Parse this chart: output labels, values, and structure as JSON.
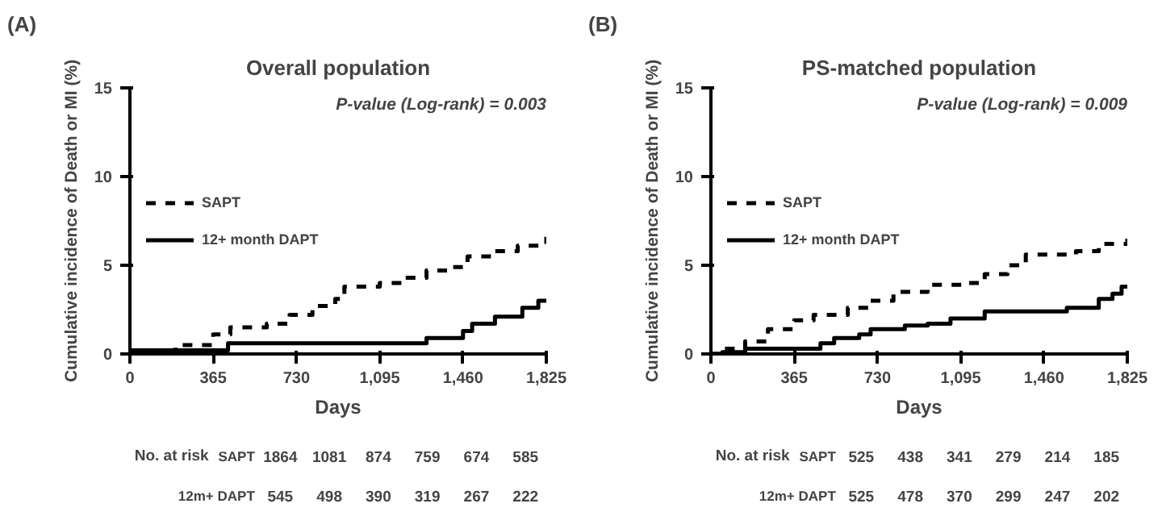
{
  "chart_data": [
    {
      "type": "step",
      "title": "Overall population",
      "xlabel": "Days",
      "ylabel": "Cumulative incidence of Death or MI (%)",
      "xlim": [
        0,
        1825
      ],
      "ylim": [
        0,
        15
      ],
      "xticks": [
        0,
        365,
        730,
        {
          "value": 1095,
          "label": "1,095"
        },
        {
          "value": 1460,
          "label": "1,460"
        },
        {
          "value": 1825,
          "label": "1,825"
        }
      ],
      "yticks": [
        0,
        5,
        10,
        15
      ],
      "grid": false,
      "legend": "left",
      "annotations": [
        "(A)",
        "P-value (Log-rank) = 0.003",
        "No. at risk",
        "SAPT",
        "1864",
        "1081",
        "874",
        "759",
        "674",
        "585",
        "12m+ DAPT",
        "545",
        "498",
        "390",
        "319",
        "267",
        "222"
      ],
      "series": [
        {
          "name": "SAPT",
          "color": "#000000",
          "line_style": "dashed",
          "x": [
            0,
            100,
            200,
            365,
            440,
            600,
            700,
            800,
            900,
            940,
            1095,
            1200,
            1300,
            1400,
            1460,
            1480,
            1600,
            1700,
            1825
          ],
          "values": [
            0.2,
            0.2,
            0.5,
            1.1,
            1.5,
            1.7,
            2.2,
            2.7,
            3.1,
            3.8,
            4.0,
            4.3,
            4.7,
            4.9,
            5.1,
            5.5,
            5.8,
            6.1,
            6.6
          ]
        },
        {
          "name": "12+ month DAPT",
          "color": "#000000",
          "line_style": "solid",
          "x": [
            0,
            430,
            1300,
            1460,
            1500,
            1600,
            1720,
            1790,
            1825
          ],
          "values": [
            0.2,
            0.6,
            0.9,
            1.3,
            1.7,
            2.1,
            2.6,
            3.0,
            3.0
          ]
        }
      ]
    },
    {
      "type": "step",
      "title": "PS-matched population",
      "xlabel": "Days",
      "ylabel": "Cumulative incidence of Death or MI (%)",
      "xlim": [
        0,
        1825
      ],
      "ylim": [
        0,
        15
      ],
      "xticks": [
        0,
        365,
        730,
        {
          "value": 1095,
          "label": "1,095"
        },
        {
          "value": 1460,
          "label": "1,460"
        },
        {
          "value": 1825,
          "label": "1,825"
        }
      ],
      "yticks": [
        0,
        5,
        10,
        15
      ],
      "grid": false,
      "legend": "left",
      "annotations": [
        "(B)",
        "P-value (Log-rank) = 0.009",
        "No. at risk",
        "SAPT",
        "525",
        "438",
        "341",
        "279",
        "214",
        "185",
        "12m+ DAPT",
        "525",
        "478",
        "370",
        "299",
        "247",
        "202"
      ],
      "series": [
        {
          "name": "SAPT",
          "color": "#000000",
          "line_style": "dashed",
          "x": [
            0,
            50,
            150,
            250,
            365,
            450,
            600,
            700,
            800,
            950,
            1100,
            1200,
            1300,
            1380,
            1460,
            1600,
            1700,
            1825
          ],
          "values": [
            0,
            0.3,
            0.7,
            1.4,
            1.9,
            2.2,
            2.6,
            3.0,
            3.5,
            3.9,
            4.0,
            4.5,
            5.0,
            5.6,
            5.6,
            5.8,
            6.2,
            6.5
          ]
        },
        {
          "name": "12+ month DAPT",
          "color": "#000000",
          "line_style": "solid",
          "x": [
            0,
            50,
            150,
            480,
            540,
            650,
            700,
            850,
            950,
            1050,
            1200,
            1560,
            1700,
            1760,
            1800,
            1825
          ],
          "values": [
            0,
            0.1,
            0.3,
            0.6,
            0.9,
            1.1,
            1.4,
            1.6,
            1.7,
            2.0,
            2.4,
            2.6,
            3.1,
            3.4,
            3.8,
            3.9
          ]
        }
      ]
    }
  ]
}
